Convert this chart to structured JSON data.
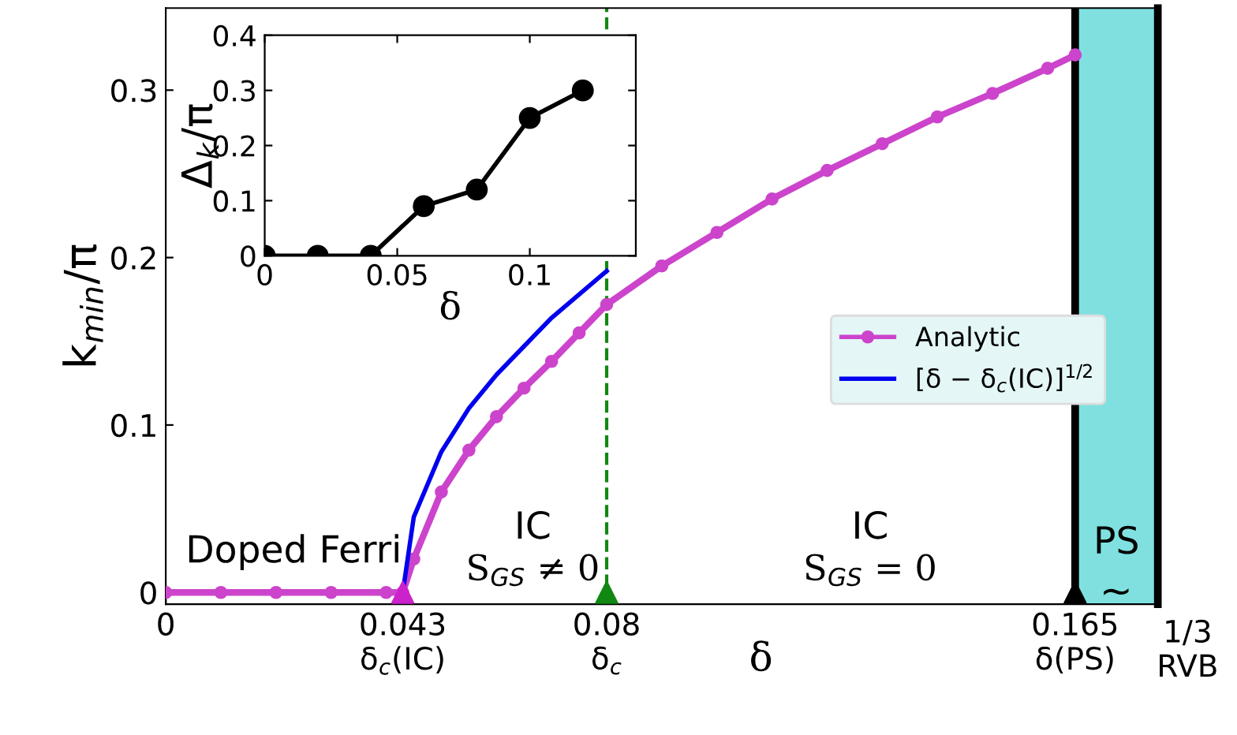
{
  "chart_data": [
    {
      "type": "line",
      "xlabel": "δ",
      "ylabel": "k$_{min}$/π",
      "xlim": [
        0,
        0.18
      ],
      "ylim": [
        -0.007,
        0.349
      ],
      "xticks": [
        0,
        {
          "value": 0.043,
          "label": "0.043\nδ$_{c}$(IC)"
        },
        {
          "value": 0.08,
          "label": "0.08\nδ$_{c}$"
        },
        {
          "value": 0.165,
          "label": "0.165\nδ(PS)"
        }
      ],
      "yticks": [
        0,
        0.1,
        0.2,
        0.3
      ],
      "series": [
        {
          "name": "Analytic",
          "color": "#cc44cc",
          "marker": "circle",
          "x": [
            0,
            0.01,
            0.02,
            0.03,
            0.04,
            0.043,
            0.045,
            0.05,
            0.055,
            0.06,
            0.065,
            0.07,
            0.075,
            0.08,
            0.09,
            0.1,
            0.11,
            0.12,
            0.13,
            0.14,
            0.15,
            0.16,
            0.165
          ],
          "values": [
            0,
            0,
            0,
            0,
            0,
            0,
            0.02,
            0.06,
            0.085,
            0.105,
            0.122,
            0.138,
            0.155,
            0.172,
            0.195,
            0.215,
            0.235,
            0.252,
            0.268,
            0.284,
            0.298,
            0.313,
            0.321
          ]
        },
        {
          "name": "[δ − δ$_{c}$(IC)]$^{1/2}$",
          "color": "#0000ee",
          "x": [
            0.043,
            0.045,
            0.05,
            0.055,
            0.06,
            0.07,
            0.08
          ],
          "values": [
            0,
            0.045,
            0.084,
            0.11,
            0.13,
            0.164,
            0.192
          ]
        },
        {
          "type": "scatter",
          "marker": "triangle",
          "x": [
            0.043,
            0.08,
            0.165
          ],
          "values": [
            0,
            0,
            0
          ],
          "colors": [
            "#cc22cc",
            "#118811",
            "#000000"
          ]
        }
      ],
      "ref_lines": [
        {
          "axis": "x",
          "value": 0.08,
          "color": "#118811",
          "line_style": "dashed"
        },
        {
          "axis": "x",
          "value": 0.165,
          "color": "#000000"
        }
      ],
      "bands": [
        {
          "axis": "x",
          "from": 0.165,
          "to": 0.18,
          "label": "PS",
          "color": "#80e0e0"
        }
      ],
      "annotations": [
        "Doped Ferri",
        "IC",
        "S$_{GS}$ ≠ 0",
        "IC",
        "S$_{GS}$ = 0",
        "~",
        "1/3\nRVB"
      ],
      "legend": "right",
      "grid": false
    },
    {
      "type": "line",
      "xlabel": "δ",
      "ylabel": "Δ$_{k}$/π",
      "xlim": [
        0,
        0.14
      ],
      "ylim": [
        0,
        0.4
      ],
      "xticks": [
        0,
        0.05,
        0.1
      ],
      "yticks": [
        0,
        0.1,
        0.2,
        0.3,
        0.4
      ],
      "series": [
        {
          "color": "#000000",
          "marker": "circle",
          "x": [
            0,
            0.02,
            0.04,
            0.06,
            0.08,
            0.1,
            0.12
          ],
          "values": [
            0,
            0,
            0,
            0.09,
            0.12,
            0.25,
            0.3
          ]
        }
      ]
    }
  ]
}
